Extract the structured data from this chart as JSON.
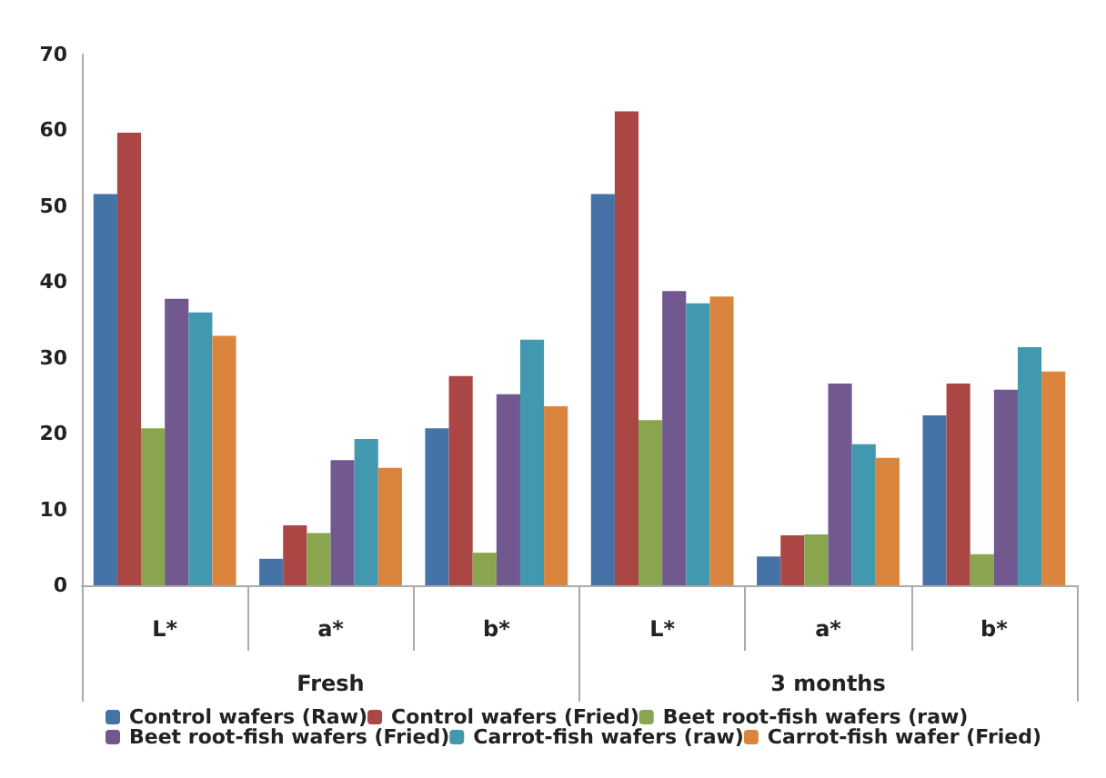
{
  "chart_data": {
    "type": "bar",
    "categories": [
      "L*",
      "a*",
      "b*",
      "L*",
      "a*",
      "b*"
    ],
    "annotations": [
      "Fresh",
      "3 months"
    ],
    "series": [
      {
        "name": "Control wafers (Raw)",
        "color": "#4572a7",
        "values": [
          51.6,
          3.5,
          20.7,
          51.6,
          3.8,
          22.4
        ]
      },
      {
        "name": "Control wafers (Fried)",
        "color": "#aa4643",
        "values": [
          59.7,
          7.9,
          27.6,
          62.5,
          6.6,
          26.6
        ]
      },
      {
        "name": "Beet root-fish wafers (raw)",
        "color": "#89a54e",
        "values": [
          20.7,
          6.9,
          4.3,
          21.8,
          6.7,
          4.1
        ]
      },
      {
        "name": "Beet root-fish wafers (Fried)",
        "color": "#71588f",
        "values": [
          37.8,
          16.5,
          25.2,
          38.8,
          26.6,
          25.8
        ]
      },
      {
        "name": "Carrot-fish wafers (raw)",
        "color": "#4198af",
        "values": [
          36.0,
          19.3,
          32.4,
          37.2,
          18.6,
          31.4
        ]
      },
      {
        "name": "Carrot-fish wafer (Fried)",
        "color": "#db843d",
        "values": [
          32.9,
          15.5,
          23.6,
          38.1,
          16.8,
          28.2
        ]
      }
    ],
    "ylim": [
      0,
      70
    ],
    "yticks": [
      0,
      10,
      20,
      30,
      40,
      50,
      60,
      70
    ],
    "grid": false,
    "legend": "bottom"
  }
}
